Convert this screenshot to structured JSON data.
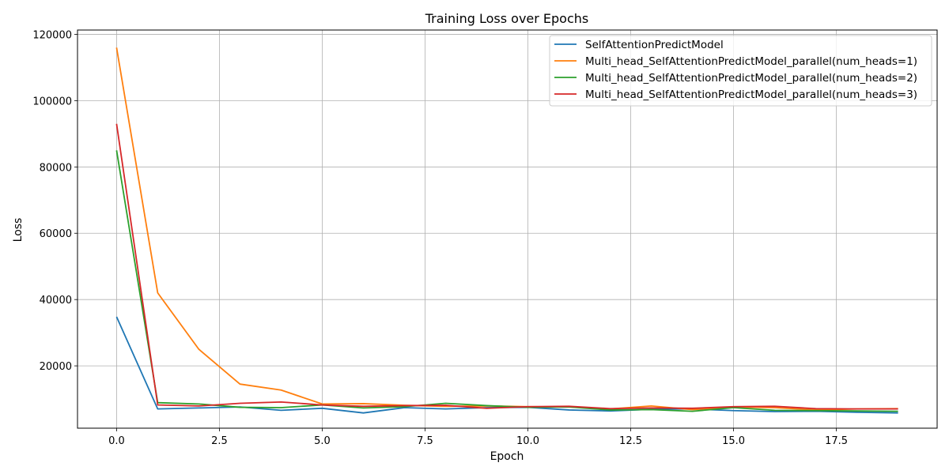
{
  "chart_data": {
    "type": "line",
    "title": "Training Loss over Epochs",
    "xlabel": "Epoch",
    "ylabel": "Loss",
    "xlim": [
      -0.95,
      19.95
    ],
    "ylim": [
      1200,
      121300
    ],
    "xticks": [
      0.0,
      2.5,
      5.0,
      7.5,
      10.0,
      12.5,
      15.0,
      17.5
    ],
    "xtick_labels": [
      "0.0",
      "2.5",
      "5.0",
      "7.5",
      "10.0",
      "12.5",
      "15.0",
      "17.5"
    ],
    "yticks": [
      20000,
      40000,
      60000,
      80000,
      100000,
      120000
    ],
    "ytick_labels": [
      "20000",
      "40000",
      "60000",
      "80000",
      "100000",
      "120000"
    ],
    "grid": true,
    "legend_position": "top-right",
    "x": [
      0,
      1,
      2,
      3,
      4,
      5,
      6,
      7,
      8,
      9,
      10,
      11,
      12,
      13,
      14,
      15,
      16,
      17,
      18,
      19
    ],
    "series": [
      {
        "name": "SelfAttentionPredictModel",
        "color": "#1f77b4",
        "values": [
          34800,
          7000,
          7300,
          7600,
          6600,
          7200,
          5800,
          7400,
          7000,
          7400,
          7500,
          6700,
          6400,
          6900,
          7000,
          6500,
          6200,
          6300,
          6000,
          5800
        ]
      },
      {
        "name": "Multi_head_SelfAttentionPredictModel_parallel(num_heads=1)",
        "color": "#ff7f0e",
        "values": [
          116000,
          42000,
          25000,
          14500,
          12700,
          8500,
          8600,
          8100,
          7800,
          7900,
          7700,
          7600,
          7000,
          7900,
          6800,
          7600,
          7400,
          6700,
          7000,
          7100
        ]
      },
      {
        "name": "Multi_head_SelfAttentionPredictModel_parallel(num_heads=2)",
        "color": "#2ca02c",
        "values": [
          85000,
          8900,
          8500,
          7500,
          7400,
          8200,
          7300,
          7700,
          8700,
          8000,
          7500,
          7600,
          6700,
          6800,
          6300,
          7400,
          6600,
          6500,
          6400,
          6300
        ]
      },
      {
        "name": "Multi_head_SelfAttentionPredictModel_parallel(num_heads=3)",
        "color": "#d62728",
        "values": [
          93000,
          8200,
          7900,
          8700,
          9100,
          8200,
          7800,
          8000,
          8100,
          7200,
          7700,
          7800,
          7100,
          7300,
          7200,
          7700,
          7800,
          7100,
          7000,
          7000
        ]
      }
    ]
  }
}
